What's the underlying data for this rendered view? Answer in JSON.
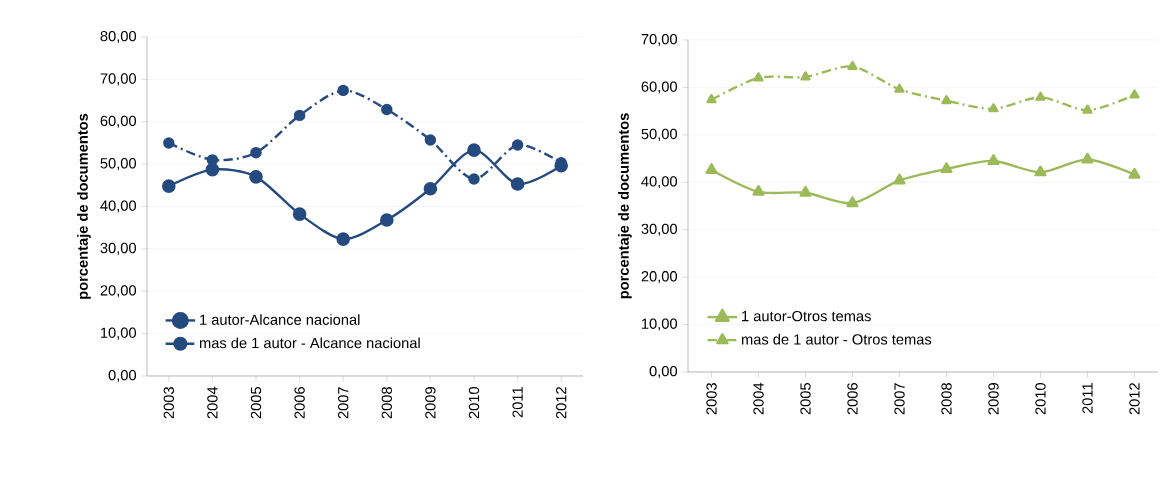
{
  "chart_data": [
    {
      "type": "line",
      "ylabel": "porcentaje de documentos",
      "categories": [
        "2003",
        "2004",
        "2005",
        "2006",
        "2007",
        "2008",
        "2009",
        "2010",
        "2011",
        "2012"
      ],
      "series": [
        {
          "name": "1 autor-Alcance nacional",
          "color": "#254a7f",
          "line_style": "solid",
          "values": [
            44.8,
            48.7,
            47.0,
            38.2,
            32.3,
            36.8,
            44.2,
            53.3,
            45.3,
            49.6
          ]
        },
        {
          "name": "mas de 1 autor - Alcance nacional",
          "color": "#254a7f",
          "line_style": "dashed",
          "values": [
            55.0,
            51.0,
            52.7,
            61.5,
            67.4,
            62.9,
            55.7,
            46.5,
            54.5,
            50.3
          ]
        }
      ],
      "ylim": [
        0,
        80
      ],
      "yticks": [
        {
          "value": 0,
          "label": "0,00"
        },
        {
          "value": 10,
          "label": "10,00"
        },
        {
          "value": 20,
          "label": "20,00"
        },
        {
          "value": 30,
          "label": "30,00"
        },
        {
          "value": 40,
          "label": "40,00"
        },
        {
          "value": 50,
          "label": "50,00"
        },
        {
          "value": 60,
          "label": "60,00"
        },
        {
          "value": 70,
          "label": "70,00"
        },
        {
          "value": 80,
          "label": "80,00"
        }
      ],
      "grid": "y",
      "legend": "bottom left",
      "marker": "circle"
    },
    {
      "type": "line",
      "ylabel": "porcentaje de documentos",
      "categories": [
        "2003",
        "2004",
        "2005",
        "2006",
        "2007",
        "2008",
        "2009",
        "2010",
        "2011",
        "2012"
      ],
      "series": [
        {
          "name": "1 autor-Otros temas",
          "color": "#9bbb59",
          "line_style": "solid",
          "values": [
            42.6,
            38.0,
            37.8,
            35.6,
            40.4,
            42.8,
            44.5,
            42.1,
            44.8,
            41.6
          ]
        },
        {
          "name": "mas de 1 autor - Otros temas",
          "color": "#9bbb59",
          "line_style": "dashed",
          "values": [
            57.4,
            62.0,
            62.2,
            64.4,
            59.6,
            57.2,
            55.5,
            57.9,
            55.2,
            58.4
          ]
        }
      ],
      "ylim": [
        0,
        70
      ],
      "yticks": [
        {
          "value": 0,
          "label": "0,00"
        },
        {
          "value": 10,
          "label": "10,00"
        },
        {
          "value": 20,
          "label": "20,00"
        },
        {
          "value": 30,
          "label": "30,00"
        },
        {
          "value": 40,
          "label": "40,00"
        },
        {
          "value": 50,
          "label": "50,00"
        },
        {
          "value": 60,
          "label": "60,00"
        },
        {
          "value": 70,
          "label": "70,00"
        }
      ],
      "grid": "y",
      "legend": "bottom left",
      "marker": "triangle"
    }
  ]
}
